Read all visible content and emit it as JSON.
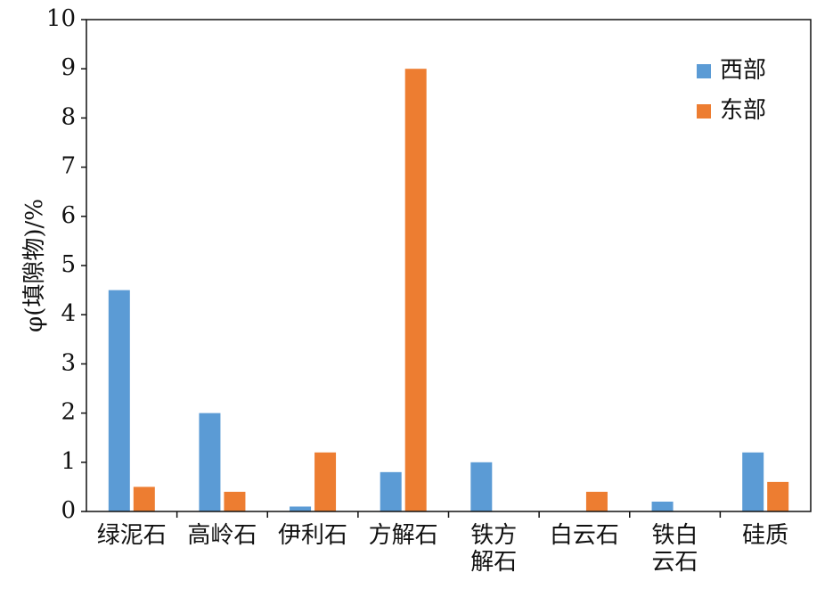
{
  "chart_data": {
    "type": "bar",
    "y_label": "φ(填隙物)/%",
    "categories": [
      "绿泥石",
      "高岭石",
      "伊利石",
      "方解石",
      "铁方解石",
      "白云石",
      "铁白云石",
      "硅质"
    ],
    "series": [
      {
        "name": "西部",
        "color": "#5b9bd5",
        "values": [
          4.5,
          2.0,
          0.1,
          0.8,
          1.0,
          0,
          0.2,
          1.2
        ]
      },
      {
        "name": "东部",
        "color": "#ed7d31",
        "values": [
          0.5,
          0.4,
          1.2,
          9.0,
          0,
          0.4,
          0,
          0.6
        ]
      }
    ],
    "ylim": [
      0,
      10
    ],
    "yticks": [
      0,
      1,
      2,
      3,
      4,
      5,
      6,
      7,
      8,
      9,
      10
    ],
    "legend": "upper right"
  }
}
